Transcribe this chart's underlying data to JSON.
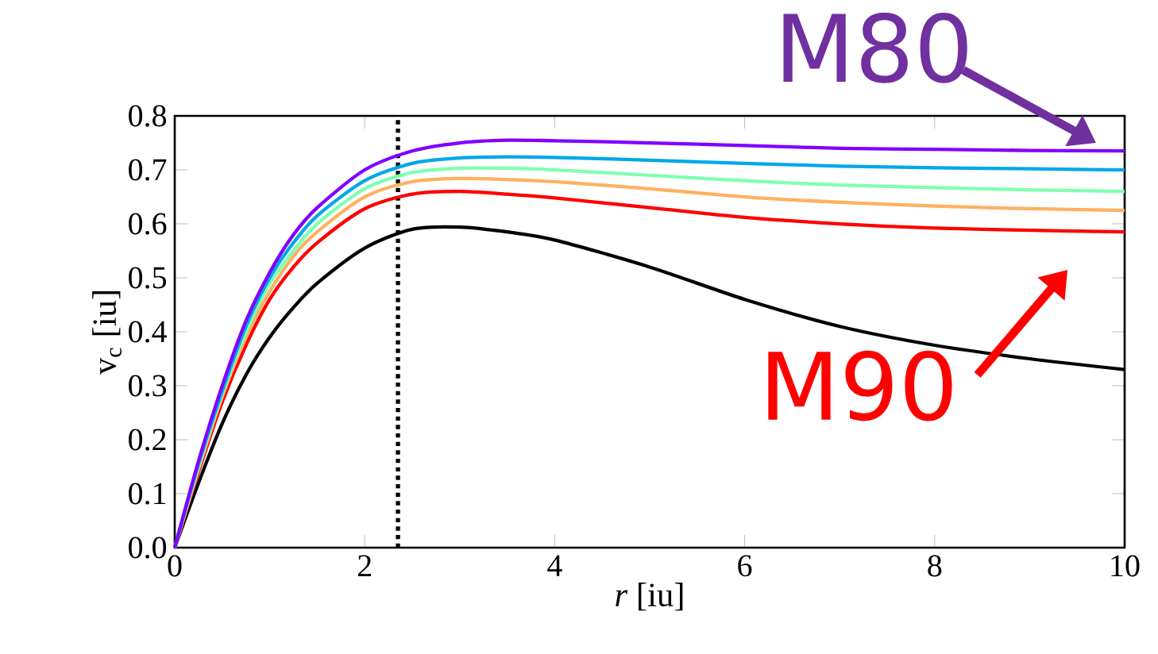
{
  "chart_data": {
    "type": "line",
    "xlabel": "*r* [iu]",
    "ylabel": "v$_{c}$ [iu]",
    "x": [
      0,
      0.25,
      0.5,
      0.75,
      1,
      1.25,
      1.5,
      2,
      2.5,
      3,
      3.5,
      4,
      5,
      6,
      7,
      8,
      9,
      10
    ],
    "series": [
      {
        "color": "#8000ff",
        "values": [
          0,
          0.16,
          0.3,
          0.42,
          0.51,
          0.58,
          0.63,
          0.7,
          0.735,
          0.75,
          0.755,
          0.754,
          0.75,
          0.745,
          0.74,
          0.738,
          0.736,
          0.735
        ]
      },
      {
        "color": "#00a8e8",
        "values": [
          0,
          0.155,
          0.29,
          0.41,
          0.5,
          0.565,
          0.615,
          0.68,
          0.712,
          0.722,
          0.724,
          0.723,
          0.718,
          0.712,
          0.707,
          0.704,
          0.702,
          0.7
        ]
      },
      {
        "color": "#80ffb0",
        "values": [
          0,
          0.15,
          0.285,
          0.4,
          0.49,
          0.55,
          0.6,
          0.665,
          0.695,
          0.703,
          0.703,
          0.7,
          0.69,
          0.68,
          0.672,
          0.667,
          0.663,
          0.66
        ]
      },
      {
        "color": "#ffb060",
        "values": [
          0,
          0.145,
          0.28,
          0.39,
          0.475,
          0.54,
          0.585,
          0.65,
          0.678,
          0.684,
          0.682,
          0.678,
          0.665,
          0.65,
          0.64,
          0.633,
          0.628,
          0.625
        ]
      },
      {
        "color": "#ff0000",
        "values": [
          0,
          0.14,
          0.27,
          0.375,
          0.46,
          0.52,
          0.565,
          0.628,
          0.655,
          0.66,
          0.655,
          0.648,
          0.63,
          0.612,
          0.6,
          0.592,
          0.588,
          0.585
        ]
      },
      {
        "color": "#000000",
        "values": [
          0,
          0.12,
          0.23,
          0.32,
          0.39,
          0.445,
          0.49,
          0.555,
          0.59,
          0.594,
          0.585,
          0.57,
          0.52,
          0.46,
          0.41,
          0.375,
          0.35,
          0.33
        ]
      }
    ],
    "xlim": [
      0,
      10
    ],
    "ylim": [
      0,
      0.8
    ],
    "xticks": [
      0,
      2,
      4,
      6,
      8,
      10
    ],
    "yticks": [
      {
        "value": 0,
        "label": "0.0"
      },
      0.1,
      0.2,
      0.3,
      0.4,
      0.5,
      0.6,
      0.7,
      0.8
    ],
    "ref_lines": [
      {
        "axis": "x",
        "value": 2.35,
        "line_style": "dotted",
        "color": "#000000"
      }
    ],
    "annotations": [
      "M80",
      "M90"
    ],
    "marker": "none",
    "line_style": "solid",
    "grid": false
  }
}
